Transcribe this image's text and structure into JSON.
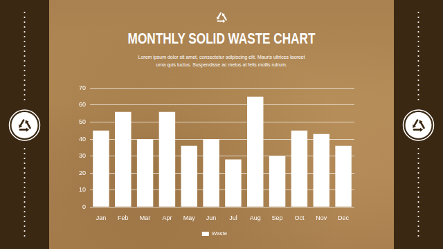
{
  "chart_data": {
    "type": "bar",
    "title": "MONTHLY SOLID WASTE CHART",
    "subtitle": "Lorem ipsum dolor sit amet, consectetur adipiscing elit. Mauris ultrices laoreet urna quis luctus. Suspendisse ac metus at felis mollis rutrum.",
    "categories": [
      "Jan",
      "Feb",
      "Mar",
      "Apr",
      "May",
      "Jun",
      "Jul",
      "Aug",
      "Sep",
      "Oct",
      "Nov",
      "Dec"
    ],
    "series": [
      {
        "name": "Waste",
        "color": "#ffffff",
        "values": [
          45,
          56,
          40,
          56,
          36,
          40,
          28,
          65,
          30,
          45,
          43,
          36
        ]
      }
    ],
    "ylim": [
      0,
      70
    ],
    "yticks": [
      0,
      10,
      20,
      30,
      40,
      50,
      60,
      70
    ],
    "grid": true,
    "legend": "bottom"
  }
}
